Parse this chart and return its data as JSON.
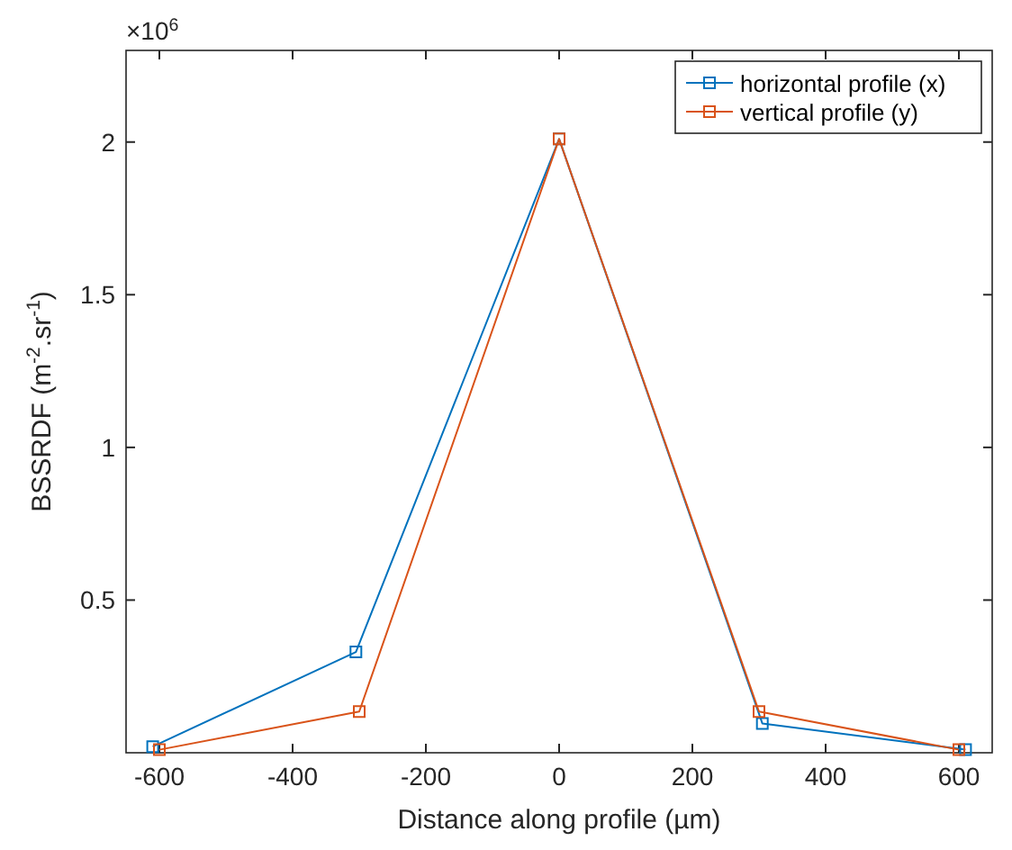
{
  "chart_data": {
    "type": "line",
    "xlabel": "Distance along profile (µm)",
    "ylabel": "BSSRDF (m$^{-2}$.sr$^{-1}$)",
    "annotations": [
      "×10$^{6}$"
    ],
    "xlim": [
      -650,
      650
    ],
    "xticks": [
      -600,
      -400,
      -200,
      0,
      200,
      400,
      600
    ],
    "ylim": [
      0,
      2.3
    ],
    "yticks": [
      0.5,
      1,
      1.5,
      2
    ],
    "marker": "square",
    "legend": "top right",
    "grid": false,
    "series": [
      {
        "name": "horizontal profile (x)",
        "color": "#0072bd",
        "x": [
          -610,
          -305,
          0,
          305,
          610
        ],
        "values": [
          0.02,
          0.33,
          2.01,
          0.096,
          0.01
        ]
      },
      {
        "name": "vertical profile (y)",
        "color": "#d95319",
        "x": [
          -600,
          -300,
          0,
          300,
          600
        ],
        "values": [
          0.01,
          0.135,
          2.01,
          0.135,
          0.01
        ]
      }
    ]
  }
}
